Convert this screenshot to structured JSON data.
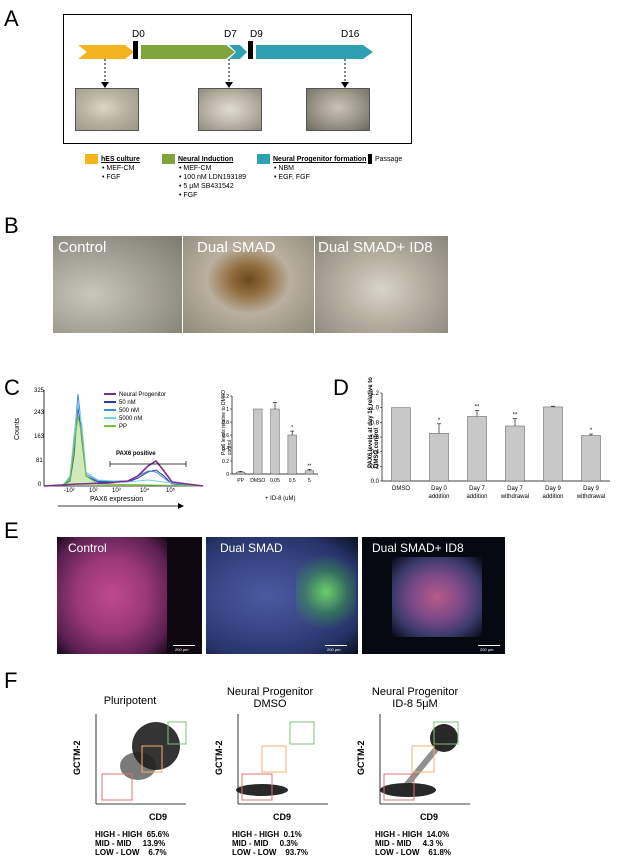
{
  "panels": {
    "A": "A",
    "B": "B",
    "C": "C",
    "D": "D",
    "E": "E",
    "F": "F"
  },
  "panelA": {
    "days": [
      "D0",
      "D7",
      "D9",
      "D16"
    ],
    "colors": {
      "hes": "#f2b51d",
      "neural": "#7ea43b",
      "progenitor": "#2fa0b4"
    },
    "legend": [
      {
        "title": "hES culture",
        "items": [
          "MEF-CM",
          "FGF"
        ],
        "color": "#f2b51d"
      },
      {
        "title": "Neural Induction",
        "items": [
          "MEF-CM",
          "100 nM LDN193189",
          "5 μM SB431542",
          "FGF"
        ],
        "color": "#7ea43b"
      },
      {
        "title": "Neural Progenitor formation",
        "items": [
          "NBM",
          "EGF, FGF"
        ],
        "color": "#2fa0b4"
      },
      {
        "title": "Passage",
        "items": [],
        "color": "#000000"
      }
    ]
  },
  "panelB": {
    "labels": [
      "Control",
      "Dual SMAD",
      "Dual SMAD+ ID8"
    ]
  },
  "panelC": {
    "histogram": {
      "ylabel": "Counts",
      "xlabel": "PAX6 expression",
      "yticks": [
        "0",
        "81",
        "163",
        "243",
        "325"
      ],
      "xticks": [
        "-10²",
        "10²",
        "10³",
        "10⁴",
        "10⁵"
      ],
      "gate_label": "PAX6 positive",
      "legend": [
        {
          "name": "Neural Progenitor",
          "color": "#7b2d8e"
        },
        {
          "name": "50 nM",
          "color": "#2b3a9e"
        },
        {
          "name": "500 nM",
          "color": "#3f8fd8"
        },
        {
          "name": "5000 nM",
          "color": "#6fd3e6"
        },
        {
          "name": "PP",
          "color": "#79c23a"
        }
      ]
    },
    "bar": {
      "ylabel": "Pax6 levels relative to DMSO control",
      "categories": [
        "PP",
        "DMSO",
        "0.05",
        "0.5",
        "5"
      ],
      "values": [
        0.03,
        1.0,
        1.0,
        0.6,
        0.05
      ],
      "errors": [
        0.01,
        0.0,
        0.1,
        0.06,
        0.02
      ],
      "sig": [
        "",
        "",
        "",
        "*",
        "**"
      ],
      "yticks": [
        "0",
        "0.2",
        "0.4",
        "0.6",
        "0.8",
        "1",
        "1.2"
      ],
      "group_label": "+ ID-8 (uM)",
      "ylim": [
        0,
        1.2
      ]
    }
  },
  "chart_data": {
    "type": "bar",
    "categories": [
      "DMSO",
      "Day 0 addition",
      "Day 7 addition",
      "Day 7 withdrawal",
      "Day 9 addition",
      "Day 9 withdrawal"
    ],
    "values": [
      1.0,
      0.65,
      0.88,
      0.75,
      1.01,
      0.62
    ],
    "errors": [
      0.0,
      0.13,
      0.08,
      0.1,
      0.01,
      0.02
    ],
    "sig": [
      "",
      "*",
      "**",
      "**",
      "",
      "*"
    ],
    "ylabel": "PAX6 levels at day 16 relative to DMSO control",
    "yticks": [
      "0.0",
      "0.2",
      "0.4",
      "0.6",
      "0.8",
      "1.0",
      "1.2"
    ],
    "ylim": [
      0,
      1.2
    ]
  },
  "panelE": {
    "labels": [
      "Control",
      "Dual SMAD",
      "Dual SMAD+ ID8"
    ],
    "scale": "200 μm"
  },
  "panelF": {
    "ylabel": "GCTM-2",
    "xlabel": "CD9",
    "plots": [
      {
        "title": [
          "Pluripotent"
        ],
        "stats": [
          [
            "HIGH - HIGH",
            "65.6%"
          ],
          [
            "MID - MID",
            "13.9%"
          ],
          [
            "LOW - LOW",
            "6.7%"
          ]
        ]
      },
      {
        "title": [
          "Neural Progenitor",
          "DMSO"
        ],
        "stats": [
          [
            "HIGH - HIGH",
            "0.1%"
          ],
          [
            "MID - MID",
            "0.3%"
          ],
          [
            "LOW - LOW",
            "93.7%"
          ]
        ]
      },
      {
        "title": [
          "Neural Progenitor",
          "ID-8 5μM"
        ],
        "stats": [
          [
            "HIGH - HIGH",
            "14.0%"
          ],
          [
            "MID - MID",
            "4.3 %"
          ],
          [
            "LOW - LOW",
            "61.8%"
          ]
        ]
      }
    ]
  }
}
